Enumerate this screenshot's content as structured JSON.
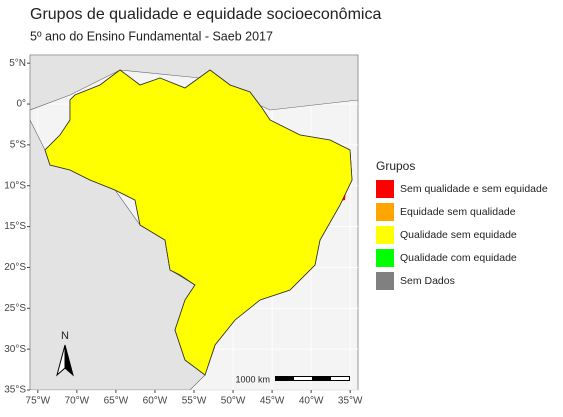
{
  "title": "Grupos de qualidade e equidade socioeconômica",
  "subtitle": "5º ano do Ensino Fundamental - Saeb 2017",
  "map": {
    "xlim": [
      -76,
      -34
    ],
    "ylim": [
      -35,
      6
    ],
    "x_ticks": [
      {
        "value": -75,
        "label": "75°W"
      },
      {
        "value": -70,
        "label": "70°W"
      },
      {
        "value": -65,
        "label": "65°W"
      },
      {
        "value": -60,
        "label": "60°W"
      },
      {
        "value": -55,
        "label": "55°W"
      },
      {
        "value": -50,
        "label": "50°W"
      },
      {
        "value": -45,
        "label": "45°W"
      },
      {
        "value": -40,
        "label": "40°W"
      },
      {
        "value": -35,
        "label": "35°W"
      }
    ],
    "y_ticks": [
      {
        "value": 5,
        "label": "5°N"
      },
      {
        "value": 0,
        "label": "0°"
      },
      {
        "value": -5,
        "label": "5°S"
      },
      {
        "value": -10,
        "label": "10°S"
      },
      {
        "value": -15,
        "label": "15°S"
      },
      {
        "value": -20,
        "label": "20°S"
      },
      {
        "value": -25,
        "label": "25°S"
      },
      {
        "value": -30,
        "label": "30°S"
      },
      {
        "value": -35,
        "label": "35°S"
      }
    ],
    "north_label": "N",
    "scale_label": "1000 km"
  },
  "legend": {
    "title": "Grupos",
    "items": [
      {
        "label": "Sem qualidade e sem equidade",
        "color": "#ff0000"
      },
      {
        "label": "Equidade sem qualidade",
        "color": "#ffa500"
      },
      {
        "label": "Qualidade sem equidade",
        "color": "#ffff00"
      },
      {
        "label": "Qualidade com equidade",
        "color": "#00ff00"
      },
      {
        "label": "Sem Dados",
        "color": "#808080"
      }
    ]
  }
}
